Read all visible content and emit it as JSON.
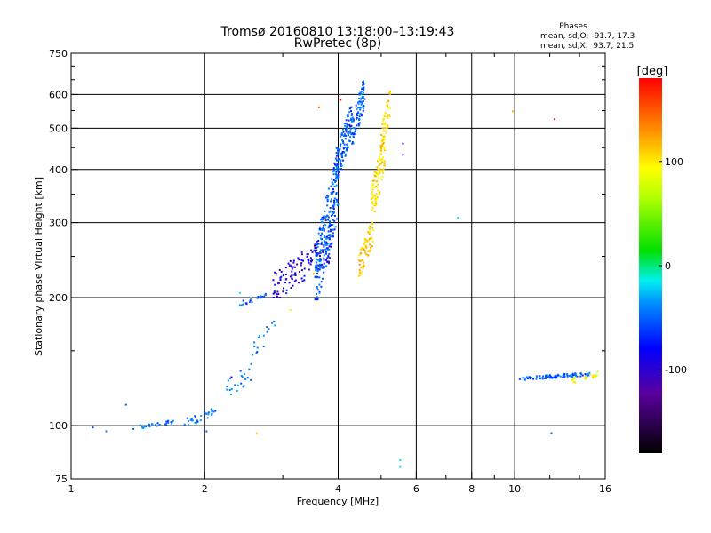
{
  "chart_data": {
    "type": "scatter",
    "title_line1": "Tromsø 20160810 13:18:00–13:19:43",
    "title_line2": "RwPretec (8p)",
    "stats": {
      "heading": "Phases",
      "line_o": "mean, sd,O: -91.7, 17.3",
      "line_x": "mean, sd,X:  93.7, 21.5"
    },
    "xlabel": "Frequency [MHz]",
    "ylabel": "Stationary phase Virtual Height [km]",
    "x_scale": "log",
    "y_scale": "log",
    "xlim": [
      1,
      16
    ],
    "ylim": [
      75,
      750
    ],
    "x_ticks": [
      {
        "v": 1,
        "label": "1"
      },
      {
        "v": 2,
        "label": "2"
      },
      {
        "v": 4,
        "label": "4"
      },
      {
        "v": 6,
        "label": "6"
      },
      {
        "v": 8,
        "label": "8"
      },
      {
        "v": 10,
        "label": "10"
      },
      {
        "v": 16,
        "label": "16"
      }
    ],
    "x_grid": [
      2,
      4,
      6,
      8,
      10
    ],
    "y_ticks": [
      {
        "v": 75,
        "label": "75"
      },
      {
        "v": 100,
        "label": "100"
      },
      {
        "v": 200,
        "label": "200"
      },
      {
        "v": 300,
        "label": "300"
      },
      {
        "v": 400,
        "label": "400"
      },
      {
        "v": 500,
        "label": "500"
      },
      {
        "v": 600,
        "label": "600"
      },
      {
        "v": 750,
        "label": "750"
      }
    ],
    "y_grid": [
      100,
      200,
      300,
      400,
      500,
      600
    ],
    "grid": true,
    "colorbar": {
      "unit": "[deg]",
      "range": [
        -180,
        180
      ],
      "ticks": [
        {
          "v": 100,
          "label": "100"
        },
        {
          "v": 0,
          "label": "0"
        },
        {
          "v": -100,
          "label": "-100"
        }
      ]
    },
    "segments": [
      {
        "f": [
          1.38,
          1.7
        ],
        "h": [
          98,
          103
        ],
        "phase": -95,
        "n": 28
      },
      {
        "f": [
          1.8,
          2.15
        ],
        "h": [
          100,
          110
        ],
        "phase": -97,
        "n": 30
      },
      {
        "f": [
          2.15,
          2.55
        ],
        "h": [
          112,
          140
        ],
        "phase": -95,
        "n": 22
      },
      {
        "f": [
          2.55,
          2.9
        ],
        "h": [
          145,
          178
        ],
        "phase": -92,
        "n": 16
      },
      {
        "f": [
          2.4,
          2.75
        ],
        "h": [
          192,
          204
        ],
        "phase": -103,
        "n": 24
      },
      {
        "f": [
          2.85,
          3.9
        ],
        "h": [
          200,
          280
        ],
        "phase": -125,
        "n": 140
      },
      {
        "f": [
          3.55,
          4.0
        ],
        "h": [
          198,
          420
        ],
        "phase": -100,
        "n": 220
      },
      {
        "f": [
          3.95,
          4.3
        ],
        "h": [
          380,
          560
        ],
        "phase": -100,
        "n": 120
      },
      {
        "f": [
          4.3,
          4.6
        ],
        "h": [
          460,
          650
        ],
        "phase": -100,
        "n": 90
      },
      {
        "f": [
          4.45,
          4.8
        ],
        "h": [
          225,
          300
        ],
        "phase": 112,
        "n": 70
      },
      {
        "f": [
          4.75,
          5.1
        ],
        "h": [
          300,
          480
        ],
        "phase": 105,
        "n": 110
      },
      {
        "f": [
          5.0,
          5.25
        ],
        "h": [
          440,
          610
        ],
        "phase": 108,
        "n": 40
      },
      {
        "f": [
          10.2,
          14.8
        ],
        "h": [
          128,
          133
        ],
        "phase": -100,
        "n": 95
      },
      {
        "f": [
          13.5,
          15.5
        ],
        "h": [
          126,
          134
        ],
        "phase": 95,
        "n": 20
      }
    ],
    "points": [
      {
        "f": 1.12,
        "h": 99,
        "phase": -105
      },
      {
        "f": 1.2,
        "h": 97,
        "phase": -95
      },
      {
        "f": 1.33,
        "h": 112,
        "phase": -100
      },
      {
        "f": 2.02,
        "h": 97,
        "phase": -100
      },
      {
        "f": 2.3,
        "h": 130,
        "phase": -130
      },
      {
        "f": 2.4,
        "h": 205,
        "phase": -20
      },
      {
        "f": 2.62,
        "h": 96,
        "phase": 110
      },
      {
        "f": 3.12,
        "h": 187,
        "phase": 100
      },
      {
        "f": 3.52,
        "h": 228,
        "phase": 110
      },
      {
        "f": 3.62,
        "h": 560,
        "phase": 150
      },
      {
        "f": 4.05,
        "h": 583,
        "phase": 180
      },
      {
        "f": 5.6,
        "h": 433,
        "phase": -130
      },
      {
        "f": 5.6,
        "h": 460,
        "phase": -140
      },
      {
        "f": 5.52,
        "h": 80,
        "phase": -20
      },
      {
        "f": 5.52,
        "h": 83,
        "phase": -10
      },
      {
        "f": 7.45,
        "h": 308,
        "phase": -30
      },
      {
        "f": 9.9,
        "h": 548,
        "phase": 120
      },
      {
        "f": 12.3,
        "h": 525,
        "phase": 170
      },
      {
        "f": 12.1,
        "h": 96,
        "phase": -100
      }
    ]
  }
}
